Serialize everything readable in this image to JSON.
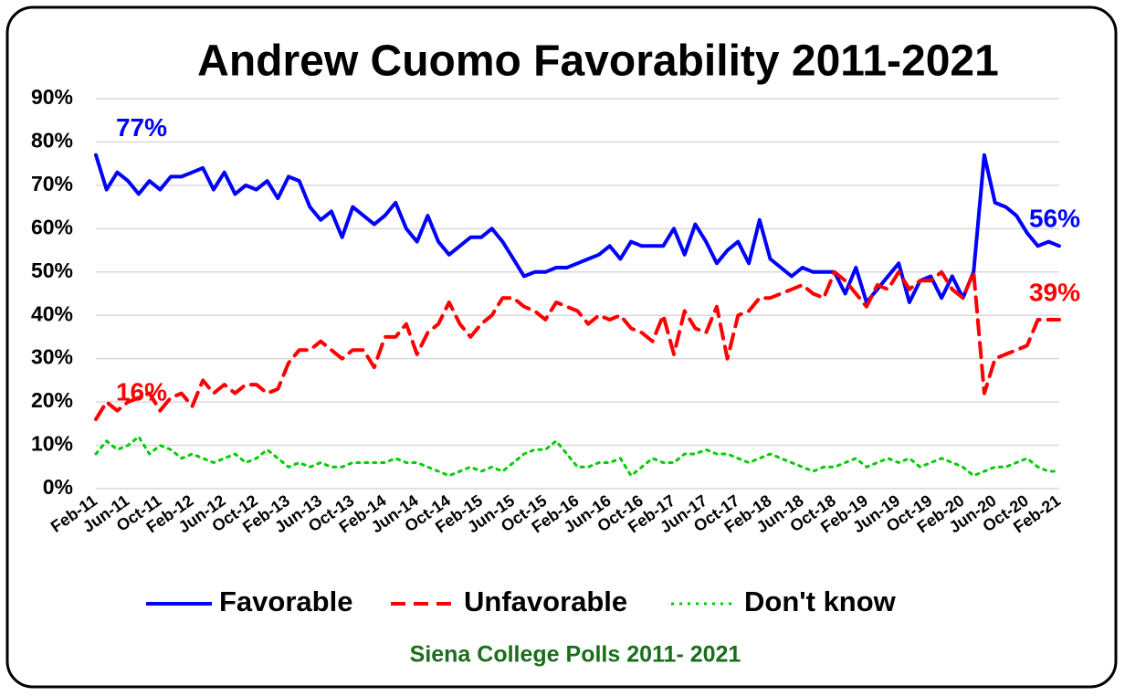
{
  "chart_data": {
    "type": "line",
    "title": "Andrew Cuomo Favorability 2011-2021",
    "footer": "Siena College Polls 2011- 2021",
    "categories": [
      "Feb-11",
      null,
      null,
      "Jun-11",
      null,
      null,
      "Oct-11",
      null,
      null,
      "Feb-12",
      null,
      null,
      "Jun-12",
      null,
      null,
      "Oct-12",
      null,
      null,
      "Feb-13",
      null,
      null,
      "Jun-13",
      null,
      null,
      "Oct-13",
      null,
      null,
      "Feb-14",
      null,
      null,
      "Jun-14",
      null,
      null,
      "Oct-14",
      null,
      null,
      "Feb-15",
      null,
      null,
      "Jun-15",
      null,
      null,
      "Oct-15",
      null,
      null,
      "Feb-16",
      null,
      null,
      "Jun-16",
      null,
      null,
      "Oct-16",
      null,
      null,
      "Feb-17",
      null,
      null,
      "Jun-17",
      null,
      null,
      "Oct-17",
      null,
      null,
      "Feb-18",
      null,
      null,
      "Jun-18",
      null,
      null,
      "Oct-18",
      null,
      null,
      "Feb-19",
      null,
      null,
      "Jun-19",
      null,
      null,
      "Oct-19",
      null,
      null,
      "Feb-20",
      null,
      null,
      "Jun-20",
      null,
      null,
      "Oct-20",
      null,
      null,
      "Feb-21"
    ],
    "series": [
      {
        "name": "Favorable",
        "color": "#0000ff",
        "dash": "solid",
        "values": [
          77,
          69,
          73,
          71,
          68,
          71,
          69,
          72,
          72,
          73,
          74,
          69,
          73,
          68,
          70,
          69,
          71,
          67,
          72,
          71,
          65,
          62,
          64,
          58,
          65,
          63,
          61,
          63,
          66,
          60,
          57,
          63,
          57,
          54,
          56,
          58,
          58,
          60,
          57,
          53,
          49,
          50,
          50,
          51,
          51,
          52,
          53,
          54,
          56,
          53,
          57,
          56,
          56,
          56,
          60,
          54,
          61,
          57,
          52,
          55,
          57,
          52,
          62,
          53,
          51,
          49,
          51,
          50,
          50,
          50,
          45,
          51,
          43,
          46,
          49,
          52,
          43,
          48,
          49,
          44,
          49,
          44,
          50,
          77,
          66,
          65,
          63,
          59,
          56,
          57,
          56
        ],
        "point_labels": [
          {
            "index": 0,
            "label": "77%"
          },
          {
            "index": 90,
            "label": "56%"
          }
        ]
      },
      {
        "name": "Unfavorable",
        "color": "#ff0000",
        "dash": "dashed",
        "values": [
          16,
          20,
          18,
          20,
          21,
          22,
          18,
          21,
          22,
          19,
          25,
          22,
          24,
          22,
          24,
          24,
          22,
          23,
          29,
          32,
          32,
          34,
          32,
          30,
          32,
          32,
          28,
          35,
          35,
          38,
          31,
          36,
          38,
          43,
          38,
          35,
          38,
          40,
          44,
          44,
          42,
          41,
          39,
          43,
          42,
          41,
          38,
          40,
          39,
          40,
          37,
          36,
          34,
          40,
          31,
          41,
          37,
          36,
          42,
          30,
          40,
          41,
          44,
          44,
          45,
          46,
          47,
          45,
          44,
          50,
          48,
          45,
          42,
          47,
          46,
          50,
          46,
          48,
          48,
          50,
          46,
          44,
          50,
          22,
          30,
          31,
          32,
          33,
          39,
          39,
          39
        ],
        "point_labels": [
          {
            "index": 0,
            "label": "16%"
          },
          {
            "index": 90,
            "label": "39%"
          }
        ]
      },
      {
        "name": "Don't know",
        "color": "#00cc00",
        "dash": "dotted",
        "values": [
          8,
          11,
          9,
          10,
          12,
          8,
          10,
          9,
          7,
          8,
          7,
          6,
          7,
          8,
          6,
          7,
          9,
          7,
          5,
          6,
          5,
          6,
          5,
          5,
          6,
          6,
          6,
          6,
          7,
          6,
          6,
          5,
          4,
          3,
          4,
          5,
          4,
          5,
          4,
          6,
          8,
          9,
          9,
          11,
          8,
          5,
          5,
          6,
          6,
          7,
          3,
          5,
          7,
          6,
          6,
          8,
          8,
          9,
          8,
          8,
          7,
          6,
          7,
          8,
          7,
          6,
          5,
          4,
          5,
          5,
          6,
          7,
          5,
          6,
          7,
          6,
          7,
          5,
          6,
          7,
          6,
          5,
          3,
          4,
          5,
          5,
          6,
          7,
          5,
          4,
          4
        ]
      }
    ],
    "ylim": [
      0,
      90
    ],
    "yticks": [
      {
        "value": 0,
        "label": "0%"
      },
      {
        "value": 10,
        "label": "10%"
      },
      {
        "value": 20,
        "label": "20%"
      },
      {
        "value": 30,
        "label": "30%"
      },
      {
        "value": 40,
        "label": "40%"
      },
      {
        "value": 50,
        "label": "50%"
      },
      {
        "value": 60,
        "label": "60%"
      },
      {
        "value": 70,
        "label": "70%"
      },
      {
        "value": 80,
        "label": "80%"
      },
      {
        "value": 90,
        "label": "90%"
      }
    ],
    "grid": true,
    "legend": "bottom"
  }
}
